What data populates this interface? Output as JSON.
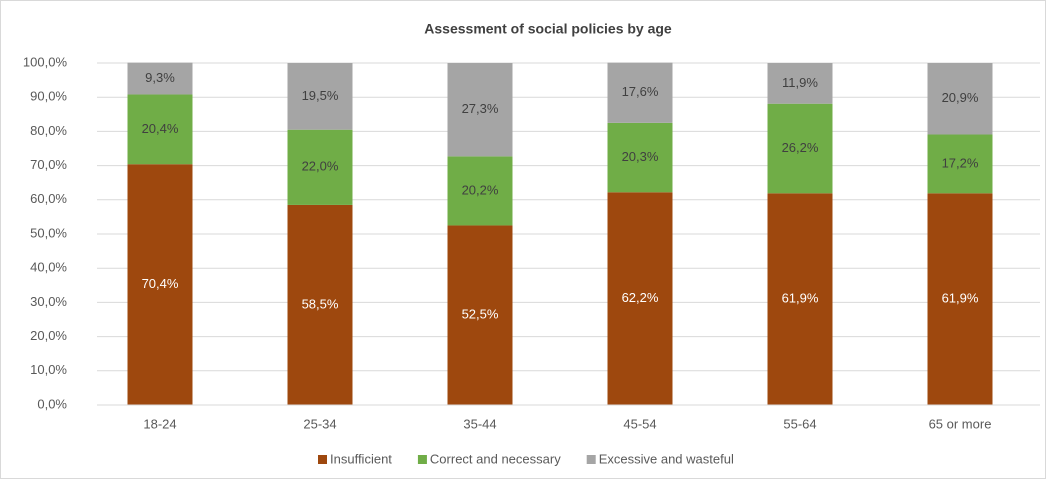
{
  "chart_data": {
    "type": "stacked_bar",
    "title": "Assessment of social policies by age",
    "categories": [
      "18-24",
      "25-34",
      "35-44",
      "45-54",
      "55-64",
      "65 or more"
    ],
    "series": [
      {
        "name": "Insufficient",
        "color": "#9e480e",
        "values": [
          70.4,
          58.5,
          52.5,
          62.2,
          61.9,
          61.9
        ],
        "value_labels": [
          "70,4%",
          "58,5%",
          "52,5%",
          "62,2%",
          "61,9%",
          "61,9%"
        ]
      },
      {
        "name": "Correct and necessary",
        "color": "#70ad47",
        "values": [
          20.4,
          22.0,
          20.2,
          20.3,
          26.2,
          17.2
        ],
        "value_labels": [
          "20,4%",
          "22,0%",
          "20,2%",
          "20,3%",
          "26,2%",
          "17,2%"
        ]
      },
      {
        "name": "Excessive and wasteful",
        "color": "#a5a5a5",
        "values": [
          9.3,
          19.5,
          27.3,
          17.6,
          11.9,
          20.9
        ],
        "value_labels": [
          "9,3%",
          "19,5%",
          "27,3%",
          "17,6%",
          "11,9%",
          "20,9%"
        ]
      }
    ],
    "ylim": [
      0,
      100
    ],
    "yticks": [
      {
        "value": 0,
        "label": "0,0%"
      },
      {
        "value": 10,
        "label": "10,0%"
      },
      {
        "value": 20,
        "label": "20,0%"
      },
      {
        "value": 30,
        "label": "30,0%"
      },
      {
        "value": 40,
        "label": "40,0%"
      },
      {
        "value": 50,
        "label": "50,0%"
      },
      {
        "value": 60,
        "label": "60,0%"
      },
      {
        "value": 70,
        "label": "70,0%"
      },
      {
        "value": 80,
        "label": "80,0%"
      },
      {
        "value": 90,
        "label": "90,0%"
      },
      {
        "value": 100,
        "label": "100,0%"
      }
    ],
    "grid": true,
    "legend": "bottom"
  }
}
